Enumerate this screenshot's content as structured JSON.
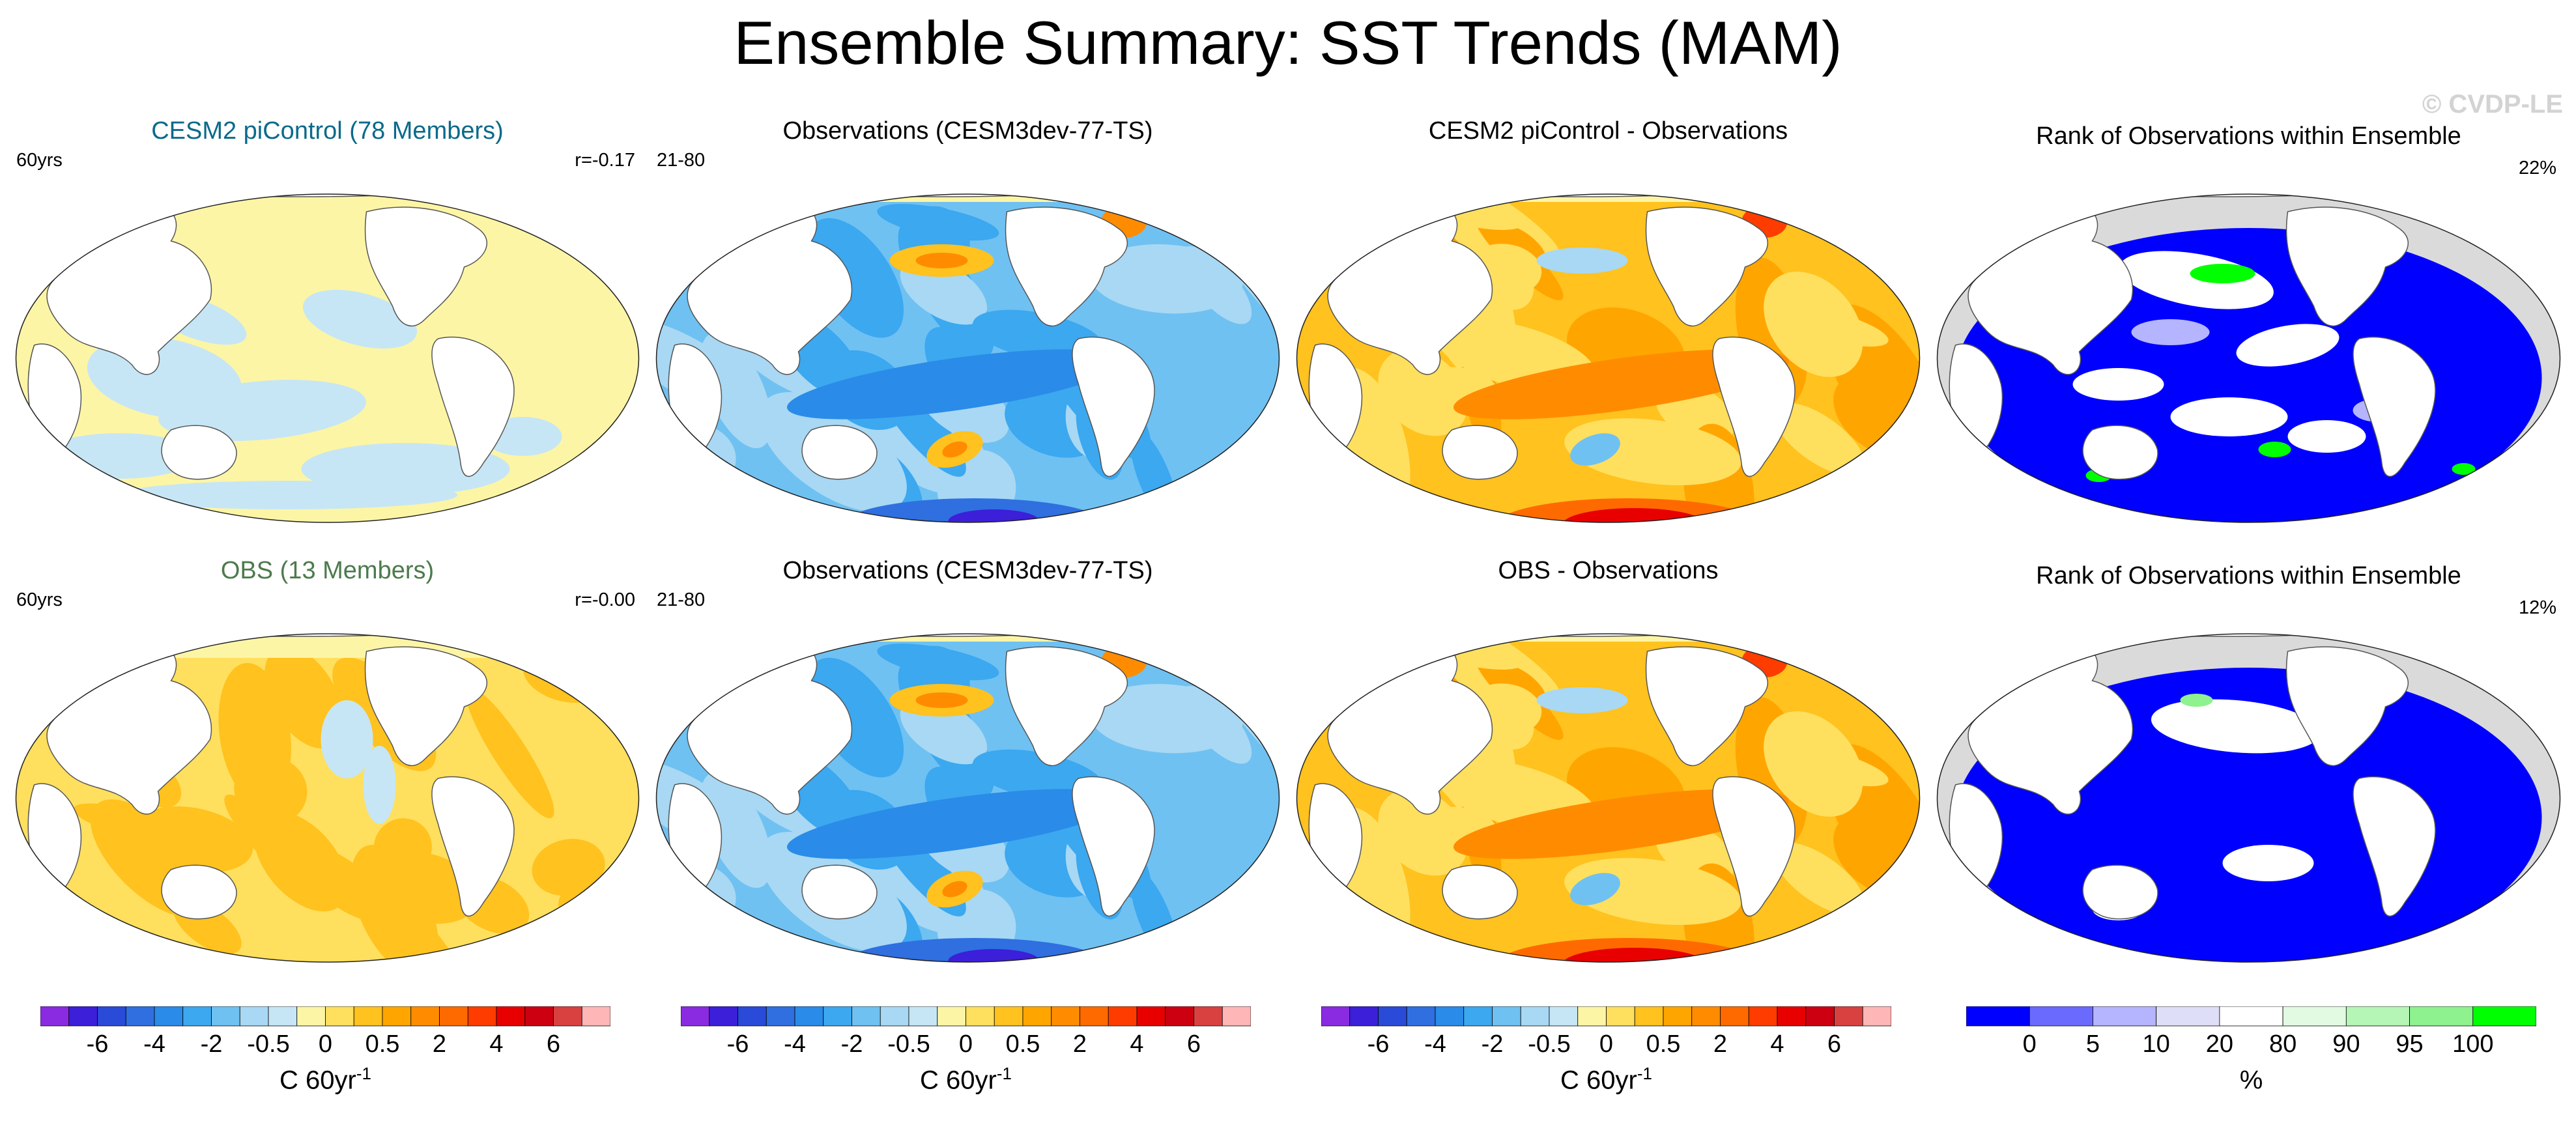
{
  "title": "Ensemble Summary: SST Trends (MAM)",
  "watermark": "© CVDP-LE",
  "colors": {
    "land": "#ffffff",
    "missing": "#dadada",
    "coast": "#555555",
    "diverging_palette": [
      "#8a2be2",
      "#3b1fd9",
      "#2a4ad8",
      "#2f6fe0",
      "#2a8be8",
      "#3ba8f0",
      "#6fc1f2",
      "#a8d8f3",
      "#c6e6f5",
      "#fdf5a6",
      "#ffdf5e",
      "#ffc21e",
      "#ffa500",
      "#ff8c00",
      "#ff6a00",
      "#ff3c00",
      "#e80000",
      "#cc0010",
      "#d94141",
      "#ffb6b6"
    ],
    "rank_palette": [
      "#0000ff",
      "#6a6aff",
      "#b4b4ff",
      "#dedef8",
      "#ffffff",
      "#e2fae2",
      "#b5f5b5",
      "#8ef28e",
      "#00ff00"
    ]
  },
  "rows": [
    {
      "panels": [
        {
          "title": "CESM2 piControl (78 Members)",
          "title_color": "#0b6a8a",
          "left": "60yrs",
          "right": "r=-0.17",
          "map": "ensmean_cool"
        },
        {
          "title": "Observations (CESM3dev-77-TS)",
          "title_color": "#000000",
          "left": "21-80",
          "right": "",
          "map": "obs"
        },
        {
          "title": "CESM2 piControl - Observations",
          "title_color": "#000000",
          "left": "",
          "right": "",
          "map": "diff"
        },
        {
          "title": "Rank of Observations within Ensemble",
          "title_color": "#000000",
          "left": "",
          "right": "22%",
          "map": "rank1"
        }
      ]
    },
    {
      "panels": [
        {
          "title": "OBS (13 Members)",
          "title_color": "#4d7a4d",
          "left": "60yrs",
          "right": "r=-0.00",
          "map": "ensmean_warm"
        },
        {
          "title": "Observations (CESM3dev-77-TS)",
          "title_color": "#000000",
          "left": "21-80",
          "right": "",
          "map": "obs"
        },
        {
          "title": "OBS - Observations",
          "title_color": "#000000",
          "left": "",
          "right": "",
          "map": "diff"
        },
        {
          "title": "Rank of Observations within Ensemble",
          "title_color": "#000000",
          "left": "",
          "right": "12%",
          "map": "rank2"
        }
      ]
    }
  ],
  "colorbars": [
    {
      "ticks": [
        "-6",
        "-4",
        "-2",
        "-0.5",
        "0",
        "0.5",
        "2",
        "4",
        "6"
      ],
      "label": "C 60yr",
      "superscript": "-1"
    },
    {
      "ticks": [
        "-6",
        "-4",
        "-2",
        "-0.5",
        "0",
        "0.5",
        "2",
        "4",
        "6"
      ],
      "label": "C 60yr",
      "superscript": "-1"
    },
    {
      "ticks": [
        "-6",
        "-4",
        "-2",
        "-0.5",
        "0",
        "0.5",
        "2",
        "4",
        "6"
      ],
      "label": "C 60yr",
      "superscript": "-1"
    },
    {
      "ticks": [
        "0",
        "5",
        "10",
        "20",
        "80",
        "90",
        "95",
        "100"
      ],
      "label": "%",
      "superscript": ""
    }
  ]
}
